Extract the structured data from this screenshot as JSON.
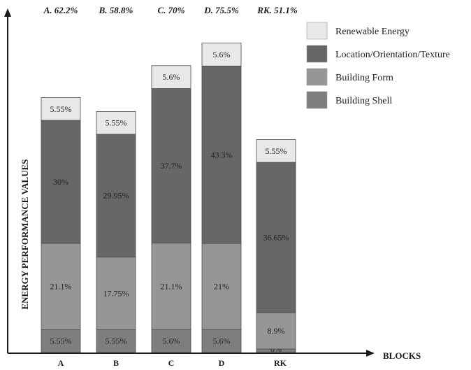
{
  "chart_data": {
    "type": "bar",
    "stacked": true,
    "title": "",
    "xlabel": "BLOCKS",
    "ylabel": "ENERGY PERFORMANCE VALUES",
    "ylim": [
      0,
      100
    ],
    "categories": [
      "A",
      "B",
      "C",
      "D",
      "RK"
    ],
    "totals": [
      "A. 62.2%",
      "B. 58.8%",
      "C. 70%",
      "D. 75.5%",
      "RK. 51.1%"
    ],
    "series": [
      {
        "name": "Building Shell",
        "color": "#7e7e7e",
        "values": [
          5.55,
          5.55,
          5.6,
          5.6,
          0
        ],
        "labels": [
          "5.55%",
          "5.55%",
          "5.6%",
          "5.6%",
          "0%"
        ]
      },
      {
        "name": "Building Form",
        "color": "#969696",
        "values": [
          21.1,
          17.75,
          21.1,
          21,
          8.9
        ],
        "labels": [
          "21.1%",
          "17.75%",
          "21.1%",
          "21%",
          "8.9%"
        ]
      },
      {
        "name": "Location/Orientation/Texture",
        "color": "#676767",
        "values": [
          30,
          29.95,
          37.7,
          43.3,
          36.65
        ],
        "labels": [
          "30%",
          "29.95%",
          "37.7%",
          "43.3%",
          "36.65%"
        ]
      },
      {
        "name": "Renewable Energy",
        "color": "#e8e8e8",
        "values": [
          5.55,
          5.55,
          5.6,
          5.6,
          5.55
        ],
        "labels": [
          "5.55%",
          "5.55%",
          "5.6%",
          "5.6%",
          "5.55%"
        ]
      }
    ],
    "legend": {
      "position": "top-right",
      "order": [
        "Renewable Energy",
        "Location/Orientation/Texture",
        "Building Form",
        "Building Shell"
      ]
    },
    "grid": false
  }
}
